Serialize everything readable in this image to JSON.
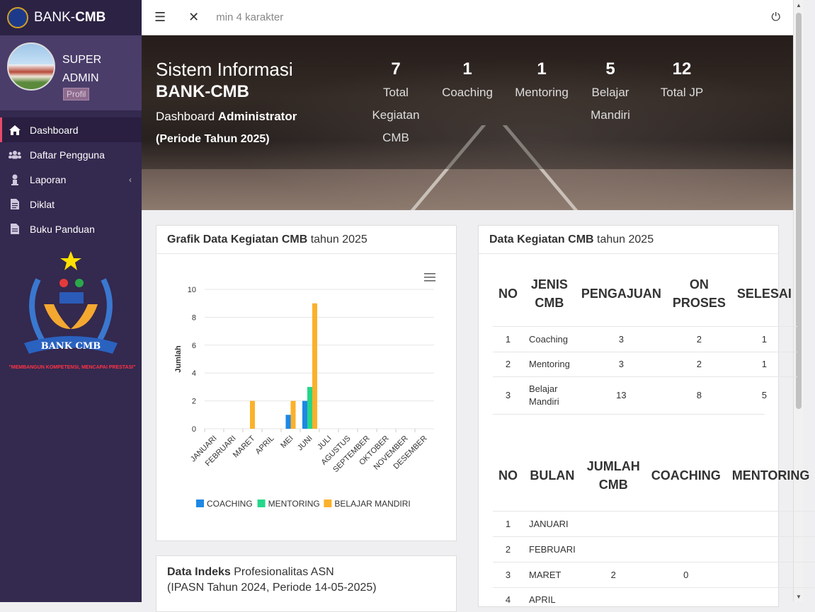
{
  "brand": {
    "prefix": "BANK-",
    "bold": "CMB"
  },
  "user": {
    "name_line1": "SUPER",
    "name_line2": "ADMIN",
    "profile_label": "Profil"
  },
  "menu": [
    {
      "label": "Dashboard",
      "icon": "home-icon"
    },
    {
      "label": "Daftar Pengguna",
      "icon": "users-icon"
    },
    {
      "label": "Laporan",
      "icon": "report-icon"
    },
    {
      "label": "Diklat",
      "icon": "document-icon"
    },
    {
      "label": "Buku Panduan",
      "icon": "book-icon"
    }
  ],
  "logo": {
    "text": "BANK CMB",
    "tagline": "\"MEMBANGUN KOMPETENSI, MENCAPAI PRESTASI\""
  },
  "topbar": {
    "search_placeholder": "min 4 karakter"
  },
  "hero": {
    "line1": "Sistem Informasi",
    "line2": "BANK-CMB",
    "line3_prefix": "Dashboard ",
    "line3_bold": "Administrator",
    "line4": "(Periode Tahun 2025)",
    "stats": [
      {
        "value": "7",
        "label_lines": [
          "Total",
          "Kegiatan",
          "CMB"
        ]
      },
      {
        "value": "1",
        "label_lines": [
          "Coaching"
        ]
      },
      {
        "value": "1",
        "label_lines": [
          "Mentoring"
        ]
      },
      {
        "value": "5",
        "label_lines": [
          "Belajar",
          "Mandiri"
        ]
      },
      {
        "value": "12",
        "label_lines": [
          "Total JP"
        ]
      }
    ]
  },
  "chart_card": {
    "title_bold": "Grafik Data Kegiatan CMB",
    "title_rest": " tahun 2025"
  },
  "chart_data": {
    "type": "bar",
    "ylabel": "Jumlah",
    "xlabel": "",
    "ylim": [
      0,
      10
    ],
    "yticks": [
      0,
      2,
      4,
      6,
      8,
      10
    ],
    "categories": [
      "JANUARI",
      "FEBRUARI",
      "MARET",
      "APRIL",
      "MEI",
      "JUNI",
      "JULI",
      "AGUSTUS",
      "SEPTEMBER",
      "OKTOBER",
      "NOVEMBER",
      "DESEMBER"
    ],
    "series": [
      {
        "name": "COACHING",
        "color": "#1e88e5",
        "values": [
          0,
          0,
          0,
          0,
          1,
          2,
          0,
          0,
          0,
          0,
          0,
          0
        ]
      },
      {
        "name": "MENTORING",
        "color": "#26d68a",
        "values": [
          0,
          0,
          0,
          0,
          0,
          3,
          0,
          0,
          0,
          0,
          0,
          0
        ]
      },
      {
        "name": "BELAJAR MANDIRI",
        "color": "#fbb12b",
        "values": [
          0,
          0,
          2,
          0,
          2,
          9,
          0,
          0,
          0,
          0,
          0,
          0
        ]
      }
    ],
    "legend": "bottom"
  },
  "idx_card": {
    "title_bold": "Data Indeks",
    "title_rest": " Profesionalitas ASN",
    "subtitle": "(IPASN Tahun 2024, Periode 14-05-2025)"
  },
  "table_card": {
    "title_bold": "Data Kegiatan CMB",
    "title_rest": " tahun 2025"
  },
  "table1": {
    "headers": [
      [
        "NO"
      ],
      [
        "JENIS",
        "CMB"
      ],
      [
        "PENGAJUAN"
      ],
      [
        "ON",
        "PROSES"
      ],
      [
        "SELESAI"
      ]
    ],
    "rows": [
      [
        "1",
        "Coaching",
        "3",
        "2",
        "1"
      ],
      [
        "2",
        "Mentoring",
        "3",
        "2",
        "1"
      ],
      [
        "3",
        "Belajar Mandiri",
        "13",
        "8",
        "5"
      ]
    ]
  },
  "table2": {
    "headers": [
      [
        "NO"
      ],
      [
        "BULAN"
      ],
      [
        "JUMLAH",
        "CMB"
      ],
      [
        "COACHING"
      ],
      [
        "MENTORING"
      ]
    ],
    "rows": [
      [
        "1",
        "JANUARI",
        "",
        "",
        ""
      ],
      [
        "2",
        "FEBRUARI",
        "",
        "",
        ""
      ],
      [
        "3",
        "MARET",
        "2",
        "0",
        ""
      ],
      [
        "4",
        "APRIL",
        "",
        "",
        ""
      ]
    ]
  }
}
